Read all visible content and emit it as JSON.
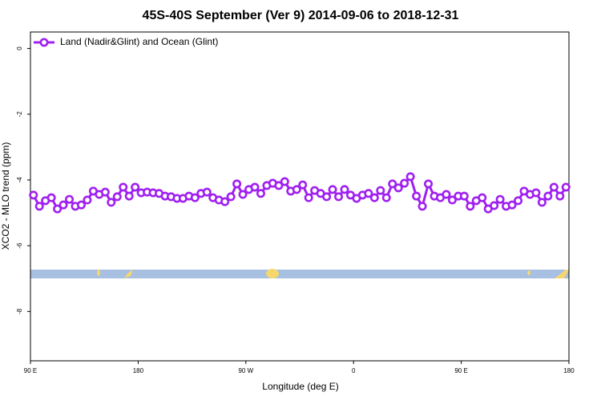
{
  "chart_data": {
    "type": "line",
    "title": "45S-40S September (Ver 9)   2014-09-06 to 2018-12-31",
    "xlabel": "Longitude (deg E)",
    "ylabel": "XCO2 - MLO trend (ppm)",
    "xlim": [
      90,
      540
    ],
    "ylim": [
      -9.5,
      0.5
    ],
    "xticks": [
      {
        "value": 90,
        "label": "90 E"
      },
      180,
      {
        "value": 270,
        "label": "90 W"
      },
      {
        "value": 360,
        "label": "0"
      },
      {
        "value": 450,
        "label": "90 E"
      },
      {
        "value": 540,
        "label": "180"
      }
    ],
    "yticks": [
      0,
      -2,
      -4,
      -6,
      -8
    ],
    "legend": "top-left",
    "x": [
      92.5,
      97.5,
      102.5,
      107.5,
      112.5,
      117.5,
      122.5,
      127.5,
      132.5,
      137.5,
      142.5,
      147.5,
      152.5,
      157.5,
      162.5,
      167.5,
      172.5,
      177.5,
      182.5,
      187.5,
      192.5,
      197.5,
      202.5,
      207.5,
      212.5,
      217.5,
      222.5,
      227.5,
      232.5,
      237.5,
      242.5,
      247.5,
      252.5,
      257.5,
      262.5,
      267.5,
      272.5,
      277.5,
      282.5,
      287.5,
      292.5,
      297.5,
      302.5,
      307.5,
      312.5,
      317.5,
      322.5,
      327.5,
      332.5,
      337.5,
      342.5,
      347.5,
      352.5,
      357.5,
      362.5,
      367.5,
      372.5,
      377.5,
      382.5,
      387.5,
      392.5,
      397.5,
      402.5,
      407.5,
      412.5,
      417.5,
      422.5,
      427.5,
      432.5,
      437.5,
      442.5,
      447.5,
      452.5,
      457.5,
      462.5,
      467.5,
      472.5,
      477.5,
      482.5,
      487.5,
      492.5,
      497.5,
      502.5,
      507.5,
      512.5,
      517.5,
      522.5,
      527.5,
      532.5,
      537.5
    ],
    "series": [
      {
        "name": "Land (Nadir&Glint) and Ocean (Glint)",
        "color": "#a020f0",
        "values": [
          -4.46,
          -4.8,
          -4.63,
          -4.54,
          -4.88,
          -4.76,
          -4.59,
          -4.8,
          -4.76,
          -4.61,
          -4.34,
          -4.44,
          -4.37,
          -4.68,
          -4.51,
          -4.22,
          -4.49,
          -4.22,
          -4.39,
          -4.37,
          -4.39,
          -4.41,
          -4.49,
          -4.51,
          -4.56,
          -4.56,
          -4.49,
          -4.54,
          -4.41,
          -4.37,
          -4.54,
          -4.61,
          -4.66,
          -4.51,
          -4.12,
          -4.44,
          -4.29,
          -4.22,
          -4.41,
          -4.17,
          -4.1,
          -4.17,
          -4.05,
          -4.34,
          -4.29,
          -4.15,
          -4.54,
          -4.32,
          -4.41,
          -4.51,
          -4.29,
          -4.51,
          -4.29,
          -4.46,
          -4.56,
          -4.46,
          -4.41,
          -4.54,
          -4.32,
          -4.54,
          -4.12,
          -4.24,
          -4.1,
          -3.9,
          -4.49,
          -4.8,
          -4.12,
          -4.49,
          -4.54,
          -4.44,
          -4.61,
          -4.49,
          -4.49,
          -4.8,
          -4.63,
          -4.54,
          -4.88,
          -4.78,
          -4.59,
          -4.8,
          -4.76,
          -4.63,
          -4.34,
          -4.44,
          -4.39,
          -4.68,
          -4.49,
          -4.22,
          -4.49,
          -4.22
        ]
      }
    ]
  }
}
